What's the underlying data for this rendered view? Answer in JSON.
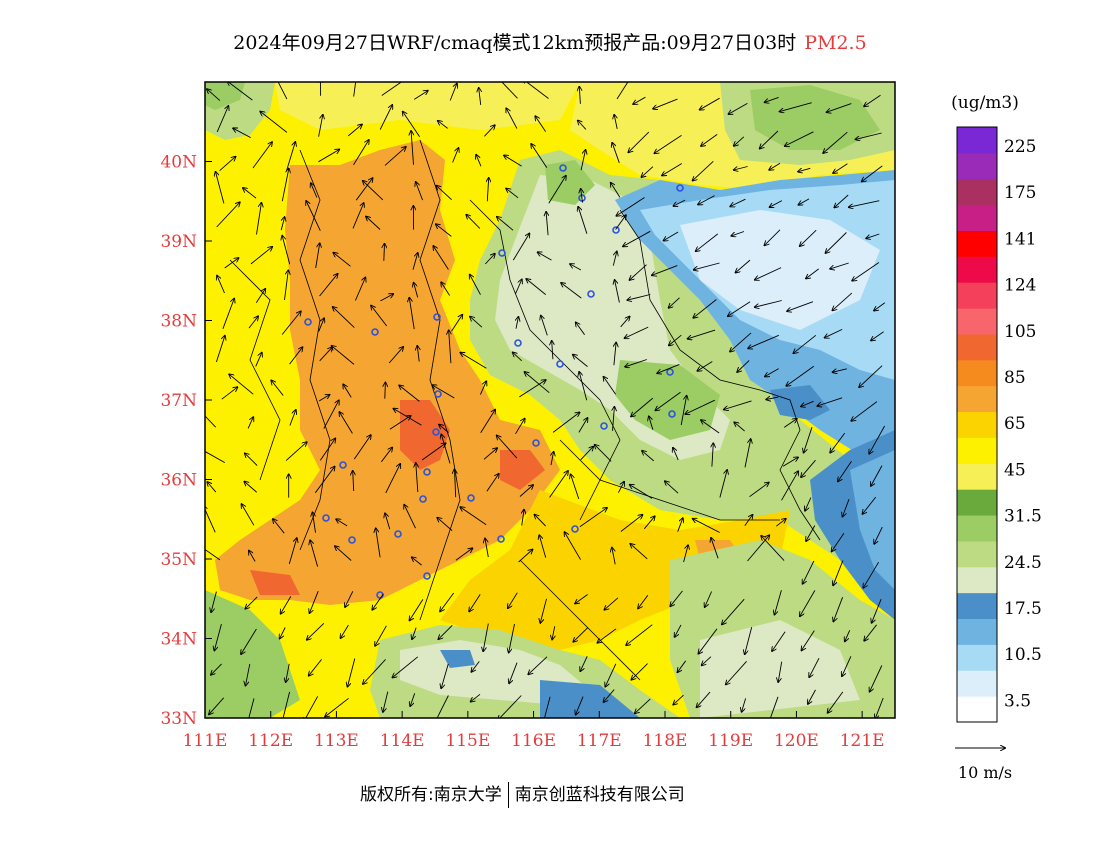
{
  "header": {
    "title": "2024年09月27日WRF/cmaq模式12km预报产品:09月27日03时",
    "pollutant": "PM2.5"
  },
  "map": {
    "lon_labels": [
      "111E",
      "112E",
      "113E",
      "114E",
      "115E",
      "116E",
      "117E",
      "118E",
      "119E",
      "120E",
      "121E"
    ],
    "lat_labels": [
      "33N",
      "34N",
      "35N",
      "36N",
      "37N",
      "38N",
      "39N",
      "40N"
    ],
    "lon_range": [
      111,
      121.5
    ],
    "lat_range": [
      33,
      41
    ],
    "label_color": "#e43c3c"
  },
  "legend": {
    "unit": "(ug/m3)",
    "labels": [
      "225",
      "175",
      "141",
      "124",
      "105",
      "85",
      "65",
      "45",
      "31.5",
      "24.5",
      "17.5",
      "10.5",
      "3.5"
    ],
    "colors": [
      "#ffffff",
      "#dbeef9",
      "#a7dbf5",
      "#6fb3e1",
      "#4b8fc9",
      "#dde8c4",
      "#bcdb82",
      "#9ccc64",
      "#6aaa3c",
      "#f6f056",
      "#fdf100",
      "#fbd400",
      "#f5a531",
      "#f58a1f",
      "#f06830",
      "#f8656c",
      "#f4405a",
      "#ee0a48",
      "#ff0000",
      "#c81f86",
      "#a93061",
      "#9a2bb8",
      "#7a27d6"
    ],
    "wind_ref": "10  m/s"
  },
  "footer": {
    "copyright": "版权所有:南京大学",
    "company": "南京创蓝科技有限公司"
  }
}
